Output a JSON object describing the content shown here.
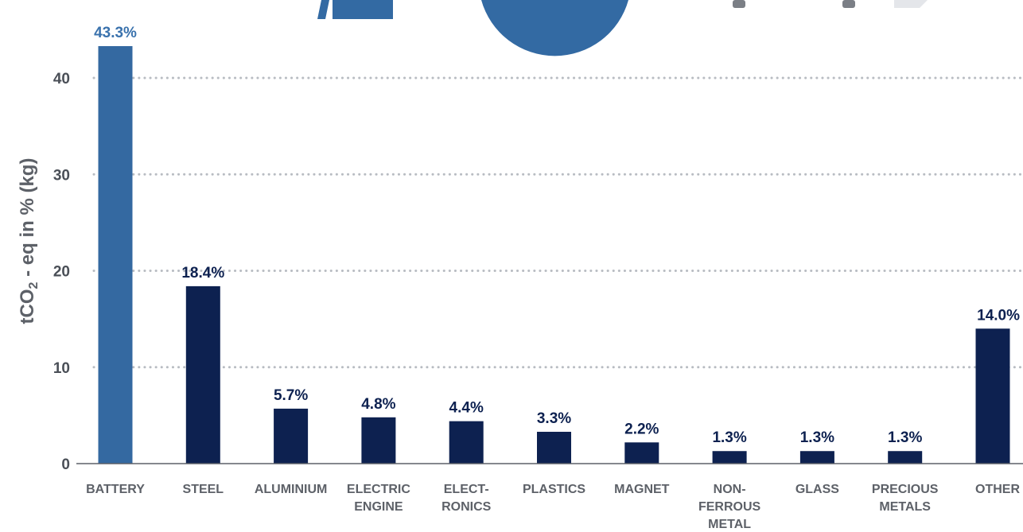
{
  "chart_data": {
    "type": "bar",
    "title": "",
    "xlabel": "",
    "ylabel": "tCO₂ - eq in % (kg)",
    "ylim": [
      0,
      46
    ],
    "yticks": [
      0,
      10,
      20,
      30,
      40
    ],
    "grid": true,
    "categories": [
      [
        "BATTERY"
      ],
      [
        "STEEL"
      ],
      [
        "ALUMINIUM"
      ],
      [
        "ELECTRIC",
        "ENGINE"
      ],
      [
        "ELECT-",
        "RONICS"
      ],
      [
        "PLASTICS"
      ],
      [
        "MAGNET"
      ],
      [
        "NON-",
        "FERROUS",
        "METAL"
      ],
      [
        "GLASS"
      ],
      [
        "PRECIOUS",
        "METALS"
      ],
      [
        "OTHER"
      ]
    ],
    "values": [
      43.3,
      18.4,
      5.7,
      4.8,
      4.4,
      3.3,
      2.2,
      1.3,
      1.3,
      1.3,
      14.0
    ],
    "data_labels": [
      "43.3%",
      "18.4%",
      "5.7%",
      "4.8%",
      "4.4%",
      "3.3%",
      "2.2%",
      "1.3%",
      "1.3%",
      "1.3%",
      "14.0%"
    ],
    "bar_colors": [
      "#3469a1",
      "#0d2150",
      "#0d2150",
      "#0d2150",
      "#0d2150",
      "#0d2150",
      "#0d2150",
      "#0d2150",
      "#0d2150",
      "#0d2150",
      "#0d2150"
    ],
    "label_colors": [
      "#3a72ad",
      "#0d2150",
      "#0d2150",
      "#0d2150",
      "#0d2150",
      "#0d2150",
      "#0d2150",
      "#0d2150",
      "#0d2150",
      "#0d2150",
      "#0d2150"
    ]
  },
  "colors": {
    "axis": "#5d6168",
    "grid": "#b8bcc2",
    "icon_blue": "#336aa3",
    "icon_gray": "#7b7f86",
    "icon_light": "#e4e6ea"
  }
}
